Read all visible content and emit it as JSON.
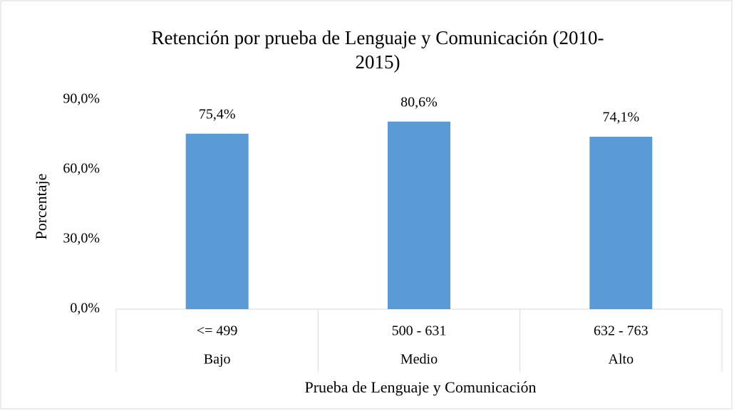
{
  "chart_data": {
    "type": "bar",
    "title": "Retención por prueba de Lenguaje  y Comunicación (2010-2015)",
    "categories": [
      "<= 499",
      "500 - 631",
      "632 - 763"
    ],
    "category_groups": [
      "Bajo",
      "Medio",
      "Alto"
    ],
    "values": [
      75.4,
      80.6,
      74.1
    ],
    "value_labels": [
      "75,4%",
      "80,6%",
      "74,1%"
    ],
    "color": "#5b9bd5",
    "ylim": [
      0,
      90
    ],
    "yticks": [
      {
        "value": 0,
        "label": "0,0%"
      },
      {
        "value": 30,
        "label": "30,0%"
      },
      {
        "value": 60,
        "label": "60,0%"
      },
      {
        "value": 90,
        "label": "90,0%"
      }
    ],
    "ylabel": "Porcentaje",
    "xlabel": "Prueba de Lenguaje y Comunicación",
    "grid": false
  }
}
